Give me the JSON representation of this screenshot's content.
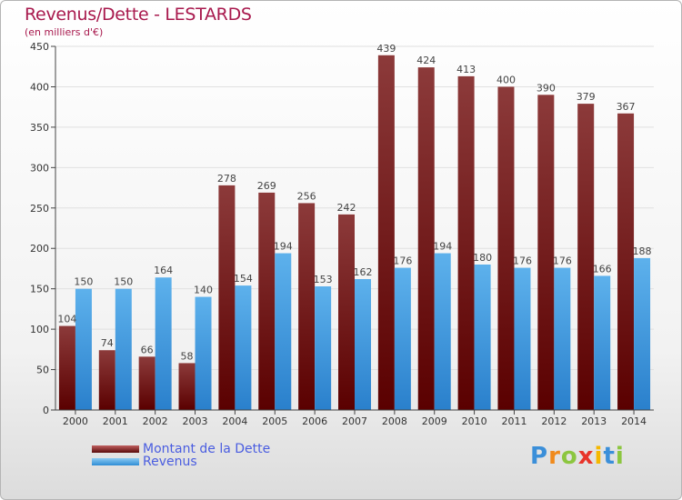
{
  "chart_data": {
    "type": "bar",
    "title": "Revenus/Dette - LESTARDS",
    "subtitle": "(en milliers d'€)",
    "categories": [
      "2000",
      "2001",
      "2002",
      "2003",
      "2004",
      "2005",
      "2006",
      "2007",
      "2008",
      "2009",
      "2010",
      "2011",
      "2012",
      "2013",
      "2014"
    ],
    "series": [
      {
        "name": "Montant de la Dette",
        "values": [
          104,
          74,
          66,
          58,
          278,
          269,
          256,
          242,
          439,
          424,
          413,
          400,
          390,
          379,
          367
        ]
      },
      {
        "name": "Revenus",
        "values": [
          150,
          150,
          164,
          140,
          154,
          194,
          153,
          162,
          176,
          194,
          180,
          176,
          176,
          166,
          188
        ]
      }
    ],
    "ylim": [
      0,
      450
    ],
    "yticks": [
      0,
      50,
      100,
      150,
      200,
      250,
      300,
      350,
      400,
      450
    ],
    "grid": true,
    "legend": "bottom-left"
  },
  "colors": {
    "dette_top": "#8a3535",
    "dette_bottom": "#5a0000",
    "revenus_top": "#5aaeea",
    "revenus_bottom": "#2a82cf",
    "title": "#a8194d",
    "legend_text": "#4a5de0"
  },
  "logo": {
    "text": "Proxiti"
  }
}
